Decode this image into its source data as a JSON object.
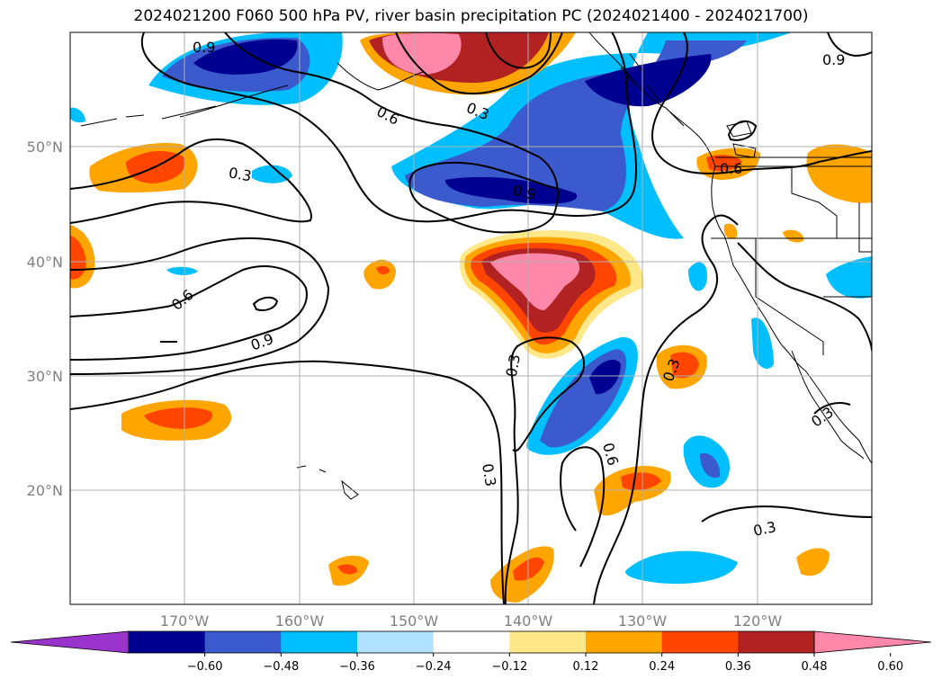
{
  "title": "2024021200 F060 500 hPa PV, river basin precipitation PC (2024021400 - 2024021700)",
  "map": {
    "lat_labels": [
      "50°N",
      "40°N",
      "30°N",
      "20°N"
    ],
    "lon_labels": [
      "170°W",
      "160°W",
      "150°W",
      "140°W",
      "130°W",
      "120°W"
    ],
    "contour_levels": [
      "0.3",
      "0.6",
      "0.9"
    ],
    "contour_color": "#000000"
  },
  "colorbar": {
    "ticks": [
      "−0.60",
      "−0.48",
      "−0.36",
      "−0.24",
      "−0.12",
      "0.12",
      "0.24",
      "0.36",
      "0.48",
      "0.60"
    ],
    "colors": [
      "#9933cc",
      "#000090",
      "#3a5acd",
      "#00bfff",
      "#b0e2ff",
      "#ffffff",
      "#ffe88a",
      "#ffa500",
      "#ff4500",
      "#b22222",
      "#ff88aa"
    ]
  }
}
